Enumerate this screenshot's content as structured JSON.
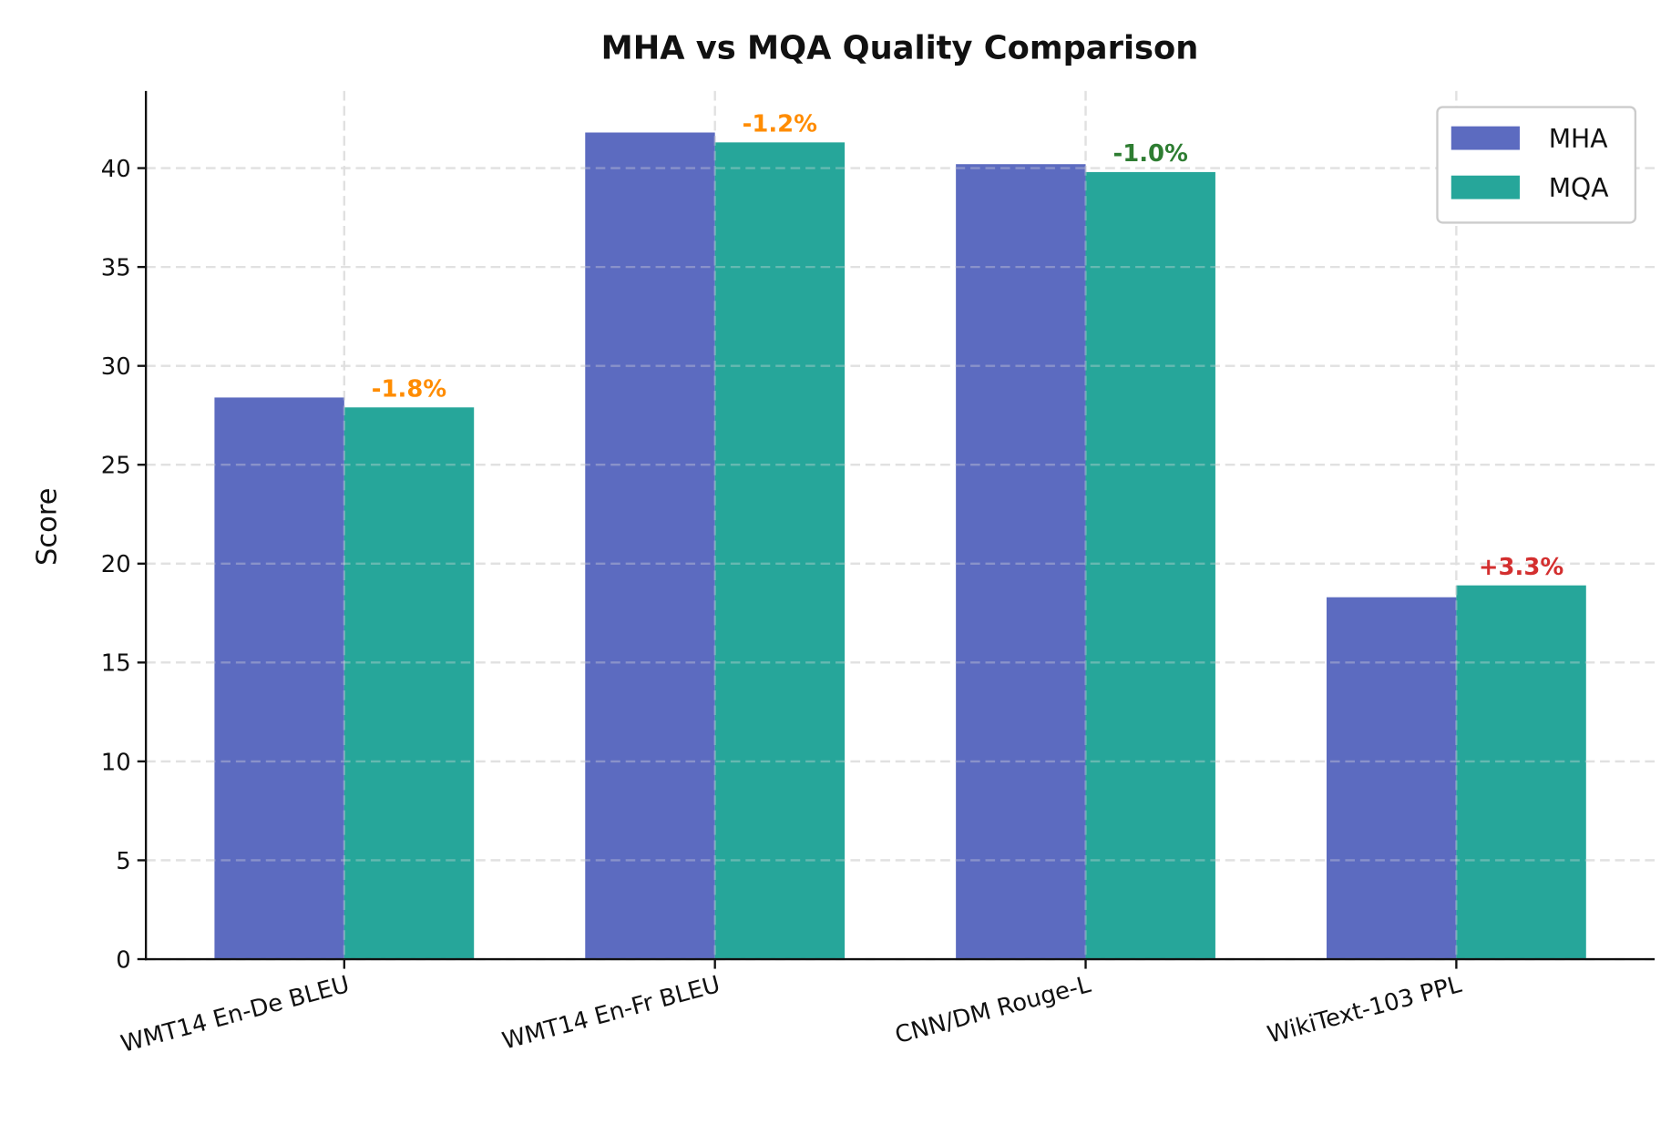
{
  "chart_data": {
    "type": "bar",
    "title": "MHA vs MQA Quality Comparison",
    "xlabel": "",
    "ylabel": "Score",
    "categories": [
      "WMT14 En-De BLEU",
      "WMT14 En-Fr BLEU",
      "CNN/DM Rouge-L",
      "WikiText-103 PPL"
    ],
    "series": [
      {
        "name": "MHA",
        "color": "#5c6bc0",
        "values": [
          28.4,
          41.8,
          40.2,
          18.3
        ]
      },
      {
        "name": "MQA",
        "color": "#26a69a",
        "values": [
          27.9,
          41.3,
          39.8,
          18.9
        ]
      }
    ],
    "annotations": [
      {
        "text": "-1.8%",
        "color": "#ff8c00"
      },
      {
        "text": "-1.2%",
        "color": "#ff8c00"
      },
      {
        "text": "-1.0%",
        "color": "#2e7d32"
      },
      {
        "text": "+3.3%",
        "color": "#d32f2f"
      }
    ],
    "ylim": [
      0,
      43.9
    ],
    "yticks": [
      0,
      5,
      10,
      15,
      20,
      25,
      30,
      35,
      40
    ],
    "grid": true,
    "legend_position": "top-right"
  }
}
